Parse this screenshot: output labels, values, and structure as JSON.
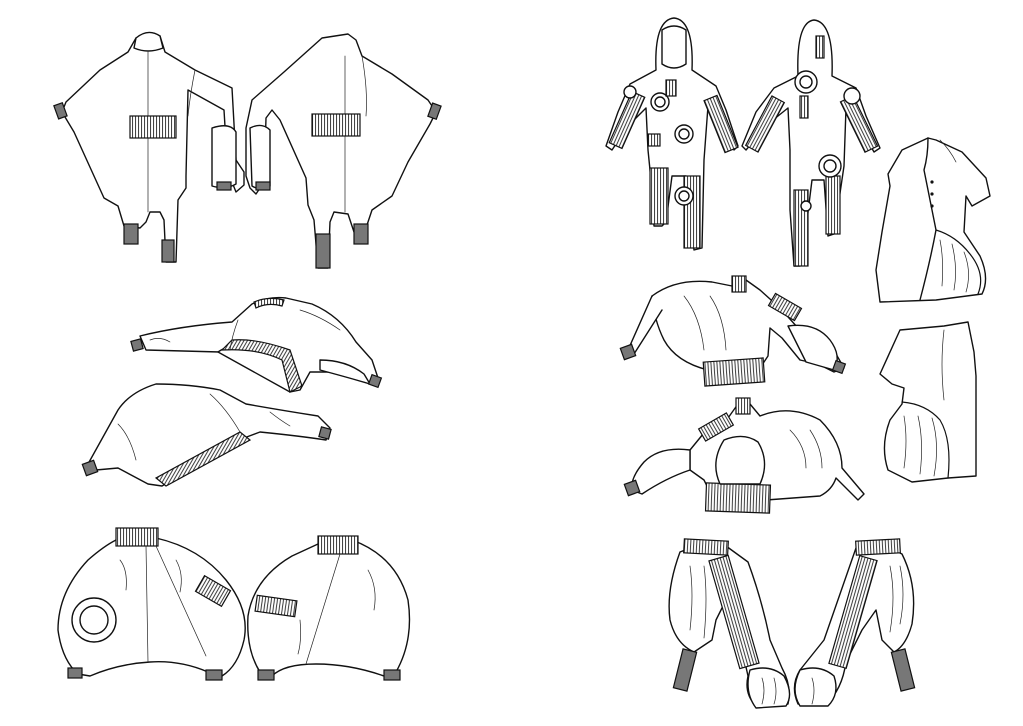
{
  "sheet": {
    "background": "#ffffff",
    "ink": "#111111",
    "rib_shade": "#777777"
  },
  "left_panel": {
    "items": [
      {
        "icon": "jumpsuit-front-icon"
      },
      {
        "icon": "jumpsuit-back-icon"
      },
      {
        "icon": "cape-top-front-icon"
      },
      {
        "icon": "cape-top-back-icon"
      },
      {
        "icon": "balloon-vest-front-icon"
      },
      {
        "icon": "balloon-vest-back-icon"
      }
    ]
  },
  "right_panel": {
    "items": [
      {
        "icon": "hooded-bodysuit-front-icon"
      },
      {
        "icon": "hooded-bodysuit-back-icon"
      },
      {
        "icon": "balloon-dress-front-icon"
      },
      {
        "icon": "balloon-dress-back-icon"
      },
      {
        "icon": "balloon-jacket-front-icon"
      },
      {
        "icon": "balloon-jacket-back-icon"
      },
      {
        "icon": "balloon-trousers-front-icon"
      },
      {
        "icon": "balloon-trousers-back-icon"
      }
    ]
  }
}
